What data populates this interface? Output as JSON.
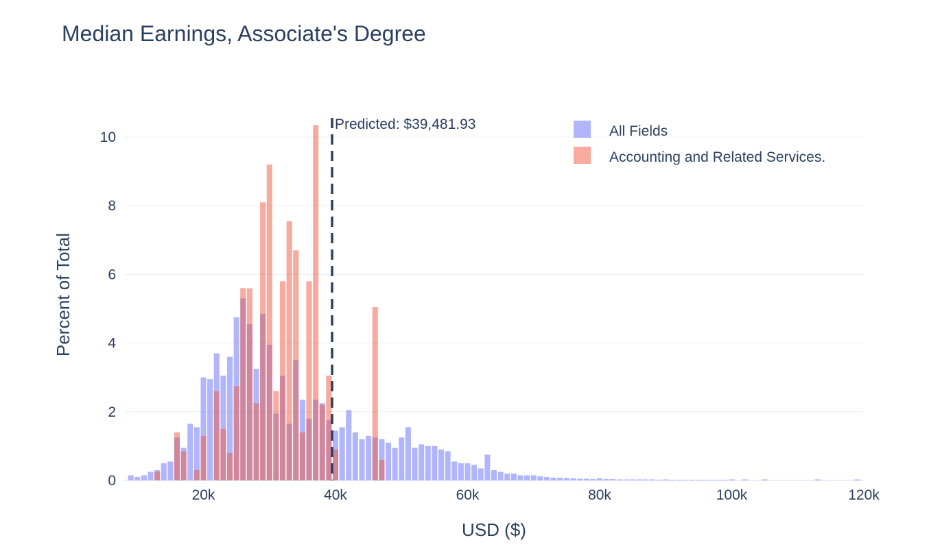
{
  "chart_data": {
    "type": "bar",
    "title": "Median Earnings, Associate's Degree",
    "xlabel": "USD ($)",
    "ylabel": "Percent of Total",
    "xlim": [
      8000,
      120000
    ],
    "ylim": [
      0,
      10.6
    ],
    "x_ticks": [
      20000,
      40000,
      60000,
      80000,
      100000,
      120000
    ],
    "x_tick_labels": [
      "20k",
      "40k",
      "60k",
      "80k",
      "100k",
      "120k"
    ],
    "y_ticks": [
      0,
      2,
      4,
      6,
      8,
      10
    ],
    "y_tick_labels": [
      "0",
      "2",
      "4",
      "6",
      "8",
      "10"
    ],
    "grid": true,
    "bin_width": 1000,
    "legend_position": "top-right",
    "series": [
      {
        "name": "All Fields",
        "color": "#636efa",
        "opacity": 0.5,
        "x": [
          9000,
          10000,
          11000,
          12000,
          13000,
          14000,
          15000,
          16000,
          17000,
          18000,
          19000,
          20000,
          21000,
          22000,
          23000,
          24000,
          25000,
          26000,
          27000,
          28000,
          29000,
          30000,
          31000,
          32000,
          33000,
          34000,
          35000,
          36000,
          37000,
          38000,
          39000,
          40000,
          41000,
          42000,
          43000,
          44000,
          45000,
          46000,
          47000,
          48000,
          49000,
          50000,
          51000,
          52000,
          53000,
          54000,
          55000,
          56000,
          57000,
          58000,
          59000,
          60000,
          61000,
          62000,
          63000,
          64000,
          65000,
          66000,
          67000,
          68000,
          69000,
          70000,
          71000,
          72000,
          73000,
          74000,
          75000,
          76000,
          77000,
          78000,
          79000,
          80000,
          81000,
          82000,
          83000,
          84000,
          85000,
          86000,
          87000,
          88000,
          89000,
          90000,
          91000,
          92000,
          93000,
          94000,
          95000,
          96000,
          97000,
          98000,
          99000,
          100000,
          102000,
          105000,
          113000,
          119000
        ],
        "y": [
          0.15,
          0.1,
          0.15,
          0.25,
          0.3,
          0.5,
          0.55,
          1.25,
          0.95,
          1.65,
          1.55,
          3.0,
          2.95,
          3.7,
          3.05,
          3.6,
          4.75,
          5.3,
          4.55,
          3.25,
          4.85,
          3.95,
          1.95,
          3.05,
          1.65,
          3.5,
          2.35,
          1.8,
          2.35,
          2.25,
          1.75,
          1.45,
          1.55,
          2.05,
          1.4,
          1.2,
          1.3,
          1.25,
          1.2,
          1.1,
          0.95,
          1.25,
          1.55,
          0.95,
          1.05,
          1.0,
          1.0,
          0.9,
          0.85,
          0.55,
          0.5,
          0.5,
          0.45,
          0.35,
          0.75,
          0.3,
          0.25,
          0.2,
          0.2,
          0.15,
          0.15,
          0.15,
          0.12,
          0.1,
          0.08,
          0.08,
          0.07,
          0.06,
          0.05,
          0.05,
          0.04,
          0.06,
          0.04,
          0.04,
          0.03,
          0.03,
          0.03,
          0.03,
          0.03,
          0.03,
          0.02,
          0.03,
          0.02,
          0.02,
          0.02,
          0.02,
          0.02,
          0.02,
          0.02,
          0.02,
          0.02,
          0.03,
          0.03,
          0.03,
          0.03,
          0.03
        ]
      },
      {
        "name": "Accounting and Related Services.",
        "color": "#ef553b",
        "opacity": 0.5,
        "x": [
          13000,
          16000,
          17000,
          19000,
          20000,
          22000,
          23000,
          24000,
          25000,
          26000,
          27000,
          28000,
          29000,
          30000,
          31000,
          32000,
          33000,
          34000,
          35000,
          36000,
          37000,
          38000,
          39000,
          40000,
          46000,
          47000
        ],
        "y": [
          0.25,
          1.4,
          0.85,
          0.3,
          1.3,
          2.6,
          1.5,
          0.8,
          2.75,
          5.6,
          5.6,
          2.25,
          8.1,
          9.2,
          2.6,
          5.8,
          7.55,
          6.7,
          1.4,
          5.8,
          10.35,
          2.2,
          3.05,
          0.9,
          5.05,
          0.6
        ]
      }
    ],
    "annotations": [
      {
        "type": "vline",
        "x": 39481.93,
        "text": "Predicted: $39,481.93",
        "color": "#2a3f5f",
        "dash": "dash"
      }
    ]
  }
}
